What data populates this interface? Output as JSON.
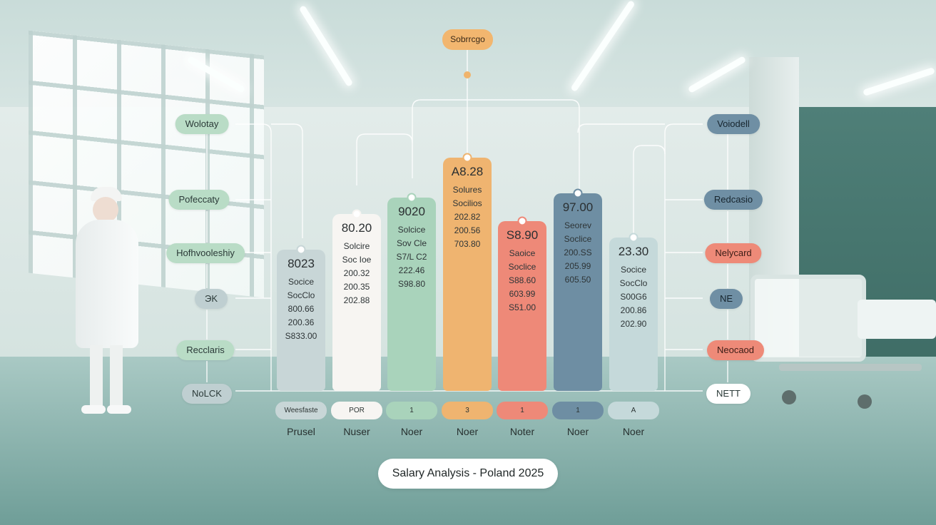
{
  "title": "Salary Analysis - Poland 2025",
  "top_label": "Sobrrcgo",
  "left_labels": [
    "Wolotay",
    "Pofeccaty",
    "Hofhvooleshiy",
    "ЭK",
    "Recclaris",
    "NoLCK"
  ],
  "right_labels": [
    "Voiodell",
    "Redcasio",
    "Nelycard",
    "NE",
    "Neocaod",
    "NETT"
  ],
  "colors": {
    "grey": "#c8d6d7",
    "white": "#f7f5f2",
    "green": "#a9d3bb",
    "orange": "#efb470",
    "salmon": "#ee8978",
    "blue": "#6e8ea3",
    "pale": "#c5d9da"
  },
  "chart_data": {
    "type": "bar",
    "title": "Salary Analysis - Poland 2025",
    "categories": [
      "Prusel",
      "Nuser",
      "Noer",
      "Noer",
      "Noter",
      "Noer",
      "Noer"
    ],
    "chips": [
      "Weesfaste",
      "POR",
      "1",
      "3",
      "1",
      "1",
      "A"
    ],
    "values": [
      8023,
      8020,
      9020,
      8828,
      8890,
      9700,
      2330
    ],
    "bars": [
      {
        "value": "8023",
        "lines": [
          "Socice",
          "SocClo",
          "800.66",
          "200.36",
          "S833.00"
        ],
        "color": "grey",
        "level": 0.6
      },
      {
        "value": "80.20",
        "lines": [
          "Solcire",
          "Soc Ioe",
          "200.32",
          "200.35",
          "202.88"
        ],
        "color": "white",
        "level": 0.75
      },
      {
        "value": "9020",
        "lines": [
          "Solcice",
          "Sov Cle",
          "S7/L C2",
          "222.46",
          "S98.80"
        ],
        "color": "green",
        "level": 0.82
      },
      {
        "value": "A8.28",
        "lines": [
          "Solures",
          "Socilios",
          "202.82",
          "200.56",
          "703.80"
        ],
        "color": "orange",
        "level": 0.99
      },
      {
        "value": "S8.90",
        "lines": [
          "Saoice",
          "Soclice",
          "S88.60",
          "603.99",
          "S51.00"
        ],
        "color": "salmon",
        "level": 0.72
      },
      {
        "value": "97.00",
        "lines": [
          "Seorev",
          "Soclice",
          "200.SS",
          "205.99",
          "605.50"
        ],
        "color": "blue",
        "level": 0.84
      },
      {
        "value": "23.30",
        "lines": [
          "Socice",
          "SocClo",
          "S00G6",
          "200.86",
          "202.90"
        ],
        "color": "pale",
        "level": 0.65
      }
    ]
  }
}
